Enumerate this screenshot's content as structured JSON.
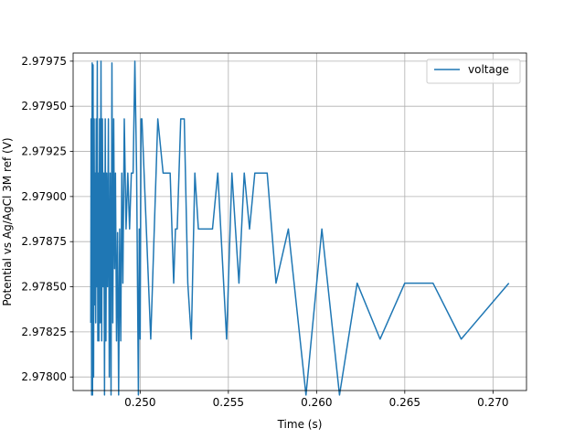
{
  "chart_data": {
    "type": "line",
    "title": "",
    "xlabel": "Time (s)",
    "ylabel": "Potential vs Ag/AgCl 3M ref (V)",
    "xlim": [
      0.2462,
      0.2719
    ],
    "ylim": [
      2.977925,
      2.979795
    ],
    "xticks": [
      0.25,
      0.255,
      0.26,
      0.265,
      0.27
    ],
    "xtick_labels": [
      "0.250",
      "0.255",
      "0.260",
      "0.265",
      "0.270"
    ],
    "yticks": [
      2.978,
      2.97825,
      2.9785,
      2.97875,
      2.979,
      2.97925,
      2.9795,
      2.97975
    ],
    "ytick_labels": [
      "2.97800",
      "2.97825",
      "2.97850",
      "2.97875",
      "2.97900",
      "2.97925",
      "2.97950",
      "2.97975"
    ],
    "grid": true,
    "legend_position": "top-right",
    "series": [
      {
        "name": "voltage",
        "color": "#1f77b4",
        "x": [
          0.2472,
          0.24722,
          0.24725,
          0.24728,
          0.2473,
          0.24733,
          0.24736,
          0.24739,
          0.24742,
          0.24745,
          0.24748,
          0.24751,
          0.24754,
          0.24757,
          0.2476,
          0.24763,
          0.24766,
          0.2477,
          0.24774,
          0.24778,
          0.24782,
          0.24786,
          0.2479,
          0.24794,
          0.24798,
          0.24802,
          0.24806,
          0.2481,
          0.24815,
          0.2482,
          0.24825,
          0.2483,
          0.24835,
          0.2484,
          0.24845,
          0.2485,
          0.24855,
          0.2486,
          0.24866,
          0.24872,
          0.24878,
          0.24884,
          0.2489,
          0.24896,
          0.24902,
          0.2491,
          0.2492,
          0.2493,
          0.2494,
          0.2495,
          0.2496,
          0.2497,
          0.2498,
          0.2499,
          0.24995,
          0.25,
          0.25005,
          0.2501,
          0.2506,
          0.251,
          0.2513,
          0.2517,
          0.2519,
          0.252,
          0.2521,
          0.2523,
          0.2525,
          0.2527,
          0.2529,
          0.2531,
          0.2533,
          0.2537,
          0.2541,
          0.2544,
          0.2549,
          0.2552,
          0.2556,
          0.2559,
          0.2562,
          0.2565,
          0.2568,
          0.2572,
          0.2577,
          0.2584,
          0.2594,
          0.2603,
          0.2613,
          0.2623,
          0.2636,
          0.265,
          0.2666,
          0.2682,
          0.2709
        ],
        "values": [
          2.9783,
          2.97943,
          2.9779,
          2.97974,
          2.9779,
          2.97973,
          2.978,
          2.97943,
          2.9784,
          2.97913,
          2.9783,
          2.97943,
          2.9785,
          2.97975,
          2.9782,
          2.97913,
          2.9782,
          2.97943,
          2.9783,
          2.97975,
          2.9782,
          2.97943,
          2.9785,
          2.97913,
          2.9779,
          2.97943,
          2.9782,
          2.97913,
          2.9785,
          2.97943,
          2.978,
          2.97913,
          2.9779,
          2.97974,
          2.9783,
          2.97943,
          2.9786,
          2.97913,
          2.9782,
          2.9788,
          2.9779,
          2.97882,
          2.9782,
          2.97913,
          2.97852,
          2.97943,
          2.97882,
          2.97913,
          2.97882,
          2.97913,
          2.97913,
          2.97975,
          2.97913,
          2.9779,
          2.97882,
          2.97821,
          2.97943,
          2.97943,
          2.97821,
          2.97943,
          2.97913,
          2.97913,
          2.97852,
          2.97882,
          2.97882,
          2.97943,
          2.97943,
          2.97852,
          2.97821,
          2.97913,
          2.97882,
          2.97882,
          2.97882,
          2.97913,
          2.97821,
          2.97913,
          2.97852,
          2.97913,
          2.97882,
          2.97913,
          2.97913,
          2.97913,
          2.97852,
          2.97882,
          2.9779,
          2.97882,
          2.9779,
          2.97852,
          2.97821,
          2.97852,
          2.97852,
          2.97821,
          2.97852
        ]
      }
    ]
  }
}
